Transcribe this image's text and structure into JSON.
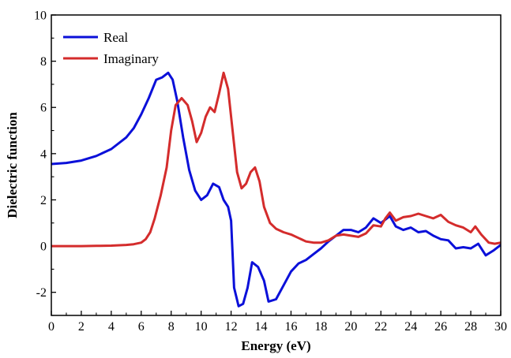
{
  "chart_data": {
    "type": "line",
    "title": "",
    "xlabel": "Energy (eV)",
    "ylabel": "Dielectric function",
    "xlim": [
      0,
      30
    ],
    "ylim": [
      -3,
      10
    ],
    "xticks": [
      0,
      2,
      4,
      6,
      8,
      10,
      12,
      14,
      16,
      18,
      20,
      22,
      24,
      26,
      28,
      30
    ],
    "yticks": [
      -2,
      0,
      2,
      4,
      6,
      8,
      10
    ],
    "grid": false,
    "legend_position": "top-left",
    "series": [
      {
        "name": "Real",
        "color": "#0b10d9",
        "x": [
          0,
          1,
          2,
          3,
          4,
          5,
          5.5,
          6,
          6.5,
          7,
          7.4,
          7.8,
          8.1,
          8.4,
          8.8,
          9.2,
          9.6,
          10,
          10.4,
          10.8,
          11.2,
          11.5,
          11.8,
          12.0,
          12.2,
          12.5,
          12.8,
          13.1,
          13.4,
          13.8,
          14.2,
          14.5,
          15.0,
          15.5,
          16,
          16.5,
          17,
          17.5,
          18,
          18.5,
          19,
          19.5,
          20,
          20.5,
          21,
          21.5,
          22,
          22.3,
          22.6,
          23,
          23.5,
          24,
          24.5,
          25,
          25.5,
          26,
          26.5,
          27,
          27.5,
          28,
          28.5,
          29,
          29.5,
          30
        ],
        "y": [
          3.55,
          3.6,
          3.7,
          3.9,
          4.2,
          4.7,
          5.1,
          5.7,
          6.4,
          7.2,
          7.3,
          7.5,
          7.2,
          6.3,
          4.7,
          3.3,
          2.4,
          2.0,
          2.2,
          2.7,
          2.55,
          2.0,
          1.7,
          1.1,
          -1.8,
          -2.6,
          -2.5,
          -1.8,
          -0.7,
          -0.9,
          -1.5,
          -2.4,
          -2.3,
          -1.7,
          -1.1,
          -0.75,
          -0.6,
          -0.35,
          -0.1,
          0.2,
          0.45,
          0.7,
          0.7,
          0.6,
          0.8,
          1.2,
          1.0,
          1.15,
          1.3,
          0.85,
          0.7,
          0.8,
          0.6,
          0.65,
          0.45,
          0.3,
          0.25,
          -0.1,
          -0.05,
          -0.1,
          0.1,
          -0.4,
          -0.2,
          0.05
        ]
      },
      {
        "name": "Imaginary",
        "color": "#d42c2c",
        "x": [
          0,
          1,
          2,
          3,
          4,
          5,
          5.5,
          6,
          6.3,
          6.6,
          6.9,
          7.3,
          7.7,
          8.0,
          8.3,
          8.7,
          9.1,
          9.4,
          9.7,
          10.0,
          10.3,
          10.6,
          10.9,
          11.2,
          11.5,
          11.8,
          12.1,
          12.4,
          12.7,
          13.0,
          13.3,
          13.6,
          13.9,
          14.2,
          14.6,
          15.0,
          15.5,
          16,
          16.5,
          17,
          17.5,
          18,
          18.5,
          19,
          19.5,
          20,
          20.5,
          21,
          21.5,
          22,
          22.3,
          22.6,
          23,
          23.5,
          24,
          24.5,
          25,
          25.5,
          26,
          26.5,
          27,
          27.5,
          28,
          28.3,
          28.7,
          29.2,
          29.6,
          30
        ],
        "y": [
          0,
          0,
          0,
          0.01,
          0.02,
          0.05,
          0.08,
          0.15,
          0.3,
          0.6,
          1.2,
          2.2,
          3.4,
          5.0,
          6.1,
          6.4,
          6.1,
          5.4,
          4.5,
          4.9,
          5.6,
          6.0,
          5.8,
          6.6,
          7.5,
          6.8,
          5.0,
          3.2,
          2.5,
          2.7,
          3.2,
          3.4,
          2.8,
          1.7,
          1.0,
          0.75,
          0.6,
          0.5,
          0.35,
          0.2,
          0.15,
          0.15,
          0.25,
          0.45,
          0.5,
          0.45,
          0.4,
          0.55,
          0.9,
          0.85,
          1.2,
          1.45,
          1.1,
          1.25,
          1.3,
          1.4,
          1.3,
          1.2,
          1.35,
          1.05,
          0.9,
          0.8,
          0.6,
          0.85,
          0.5,
          0.15,
          0.1,
          0.15
        ]
      }
    ]
  }
}
